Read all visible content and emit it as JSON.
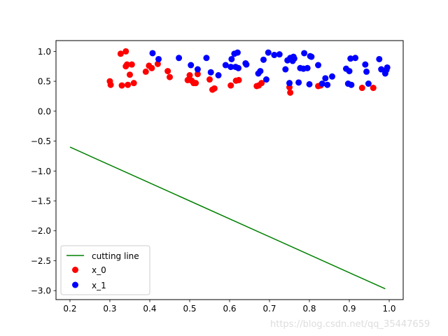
{
  "chart_data": {
    "type": "scatter",
    "title": "",
    "xlabel": "",
    "ylabel": "",
    "xlim": [
      0.165,
      1.035
    ],
    "ylim": [
      -3.15,
      1.18
    ],
    "xticks": [
      0.2,
      0.3,
      0.4,
      0.5,
      0.6,
      0.7,
      0.8,
      0.9,
      1.0
    ],
    "xtick_labels": [
      "0.2",
      "0.3",
      "0.4",
      "0.5",
      "0.6",
      "0.7",
      "0.8",
      "0.9",
      "1.0"
    ],
    "yticks": [
      1.0,
      0.5,
      0.0,
      -0.5,
      -1.0,
      -1.5,
      -2.0,
      -2.5,
      -3.0
    ],
    "ytick_labels": [
      "1.0",
      "0.5",
      "0.0",
      "−0.5",
      "−1.0",
      "−1.5",
      "−2.0",
      "−2.5",
      "−3.0"
    ],
    "grid": false,
    "legend_position": "lower-left",
    "series": [
      {
        "name": "cutting line",
        "kind": "line",
        "color": "#008000",
        "x": [
          0.2,
          0.99
        ],
        "y": [
          -0.6,
          -2.97
        ]
      },
      {
        "name": "x_0",
        "kind": "scatter",
        "color": "#ff0000",
        "x": [
          0.3,
          0.302,
          0.327,
          0.33,
          0.34,
          0.34,
          0.343,
          0.345,
          0.35,
          0.355,
          0.36,
          0.39,
          0.398,
          0.405,
          0.42,
          0.445,
          0.45,
          0.495,
          0.5,
          0.505,
          0.51,
          0.515,
          0.52,
          0.55,
          0.557,
          0.562,
          0.603,
          0.616,
          0.623,
          0.668,
          0.673,
          0.68,
          0.75,
          0.752,
          0.822,
          0.828,
          0.932,
          0.96
        ],
        "y": [
          0.5,
          0.44,
          0.96,
          0.43,
          1.0,
          0.75,
          0.78,
          0.44,
          0.61,
          0.78,
          0.47,
          0.66,
          0.76,
          0.72,
          0.79,
          0.67,
          0.57,
          0.52,
          0.6,
          0.51,
          0.47,
          0.47,
          0.62,
          0.53,
          0.36,
          0.38,
          0.43,
          0.51,
          0.52,
          0.42,
          0.43,
          0.47,
          0.4,
          0.31,
          0.42,
          0.43,
          0.39,
          0.39
        ]
      },
      {
        "name": "x_1",
        "kind": "scatter",
        "color": "#0000ff",
        "x": [
          0.407,
          0.422,
          0.473,
          0.503,
          0.52,
          0.542,
          0.553,
          0.572,
          0.59,
          0.603,
          0.605,
          0.612,
          0.615,
          0.62,
          0.622,
          0.64,
          0.642,
          0.672,
          0.677,
          0.685,
          0.692,
          0.697,
          0.712,
          0.725,
          0.74,
          0.745,
          0.75,
          0.752,
          0.758,
          0.76,
          0.762,
          0.773,
          0.777,
          0.785,
          0.787,
          0.795,
          0.8,
          0.802,
          0.805,
          0.822,
          0.832,
          0.84,
          0.845,
          0.857,
          0.892,
          0.897,
          0.9,
          0.903,
          0.905,
          0.915,
          0.94,
          0.943,
          0.948,
          0.975,
          0.98,
          0.99,
          0.993,
          0.995
        ],
        "y": [
          0.97,
          0.87,
          0.89,
          0.77,
          0.7,
          0.89,
          0.65,
          0.6,
          0.77,
          0.74,
          0.87,
          0.96,
          0.74,
          0.98,
          0.72,
          0.8,
          0.78,
          0.63,
          0.67,
          0.86,
          0.53,
          0.98,
          0.94,
          0.95,
          0.7,
          0.85,
          0.47,
          0.89,
          0.84,
          0.91,
          0.88,
          0.48,
          0.72,
          0.71,
          0.97,
          0.72,
          0.45,
          0.92,
          0.91,
          0.77,
          0.46,
          0.55,
          0.44,
          0.58,
          0.71,
          0.46,
          0.67,
          0.88,
          0.44,
          0.89,
          0.78,
          0.66,
          0.46,
          0.87,
          0.7,
          0.63,
          0.69,
          0.73
        ]
      }
    ],
    "legend": [
      {
        "label": "cutting line",
        "kind": "line",
        "color": "#008000"
      },
      {
        "label": "x_0",
        "kind": "marker",
        "color": "#ff0000"
      },
      {
        "label": "x_1",
        "kind": "marker",
        "color": "#0000ff"
      }
    ]
  },
  "watermark": "https://blog.csdn.net/qq_35447659"
}
